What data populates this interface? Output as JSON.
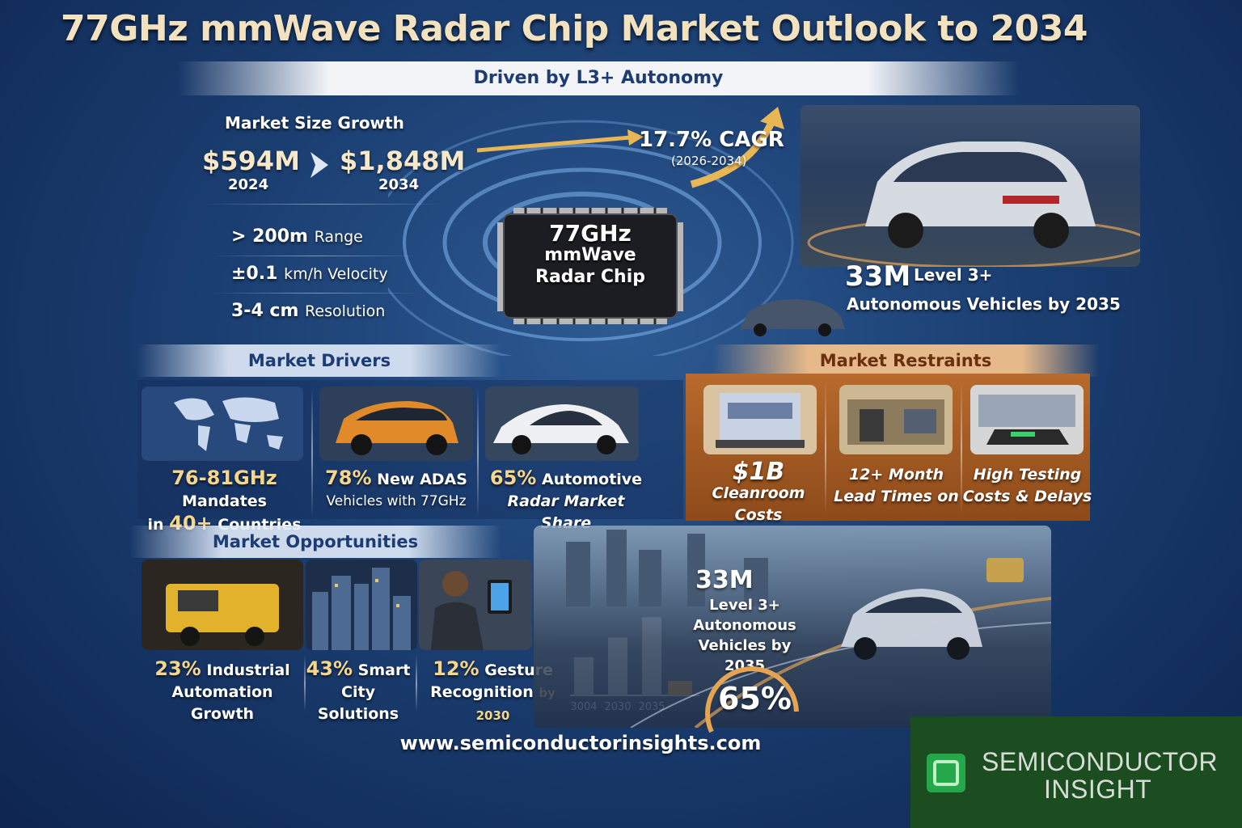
{
  "title": "77GHz mmWave Radar Chip Market Outlook to 2034",
  "subtitle": "Driven by L3+ Autonomy",
  "market_size": {
    "heading": "Market Size Growth",
    "start_value": "$594M",
    "start_year": "2024",
    "end_value": "$1,848M",
    "end_year": "2034",
    "cagr": "17.7% CAGR",
    "cagr_period": "(2026-2034)"
  },
  "specs": [
    {
      "value": "> 200m",
      "label": "Range"
    },
    {
      "value": "±0.1",
      "label": "km/h Velocity"
    },
    {
      "value": "3-4 cm",
      "label": "Resolution"
    }
  ],
  "chip_label": [
    "77GHz",
    "mmWave",
    "Radar Chip"
  ],
  "autonomy_stat": {
    "value": "33M",
    "line1": "Level 3+",
    "line2": "Autonomous Vehicles by 2035"
  },
  "drivers": {
    "heading": "Market Drivers",
    "items": [
      {
        "num": "76-81GHz",
        "line1": "Mandates",
        "num2": "40+",
        "line2pre": "in",
        "line2": "Countries"
      },
      {
        "num": "78%",
        "line1": "New ADAS",
        "line2": "Vehicles with 77GHz"
      },
      {
        "num": "65%",
        "line1": "Automotive",
        "line2": "Radar Market Share"
      }
    ]
  },
  "restraints": {
    "heading": "Market Restraints",
    "items": [
      {
        "num": "$1B",
        "line2": "Cleanroom Costs"
      },
      {
        "line1": "12+ Month",
        "line2": "Lead Times on"
      },
      {
        "line1": "High Testing",
        "line2": "Costs & Delays"
      }
    ]
  },
  "opportunities": {
    "heading": "Market Opportunities",
    "items": [
      {
        "num": "23%",
        "line1": "Industrial",
        "line2": "Automation Growth"
      },
      {
        "num": "43%",
        "line1": "Smart",
        "line2": "City Solutions"
      },
      {
        "num": "12%",
        "line1": "Gesture",
        "line2": "Recognition",
        "suffix": "by 2030"
      }
    ]
  },
  "mini_chart": {
    "categories": [
      "3004",
      "2030",
      "2035"
    ],
    "values": [
      0.45,
      0.68,
      0.92
    ],
    "highlight_value": 0.17
  },
  "bottom_stat": {
    "value": "33M",
    "line1": "Level 3+",
    "line2": "Autonomous",
    "line3": "Vehicles by 2035"
  },
  "gauge_value": "65%",
  "url": "www.semiconductorinsights.com",
  "logo": {
    "line1": "SEMICONDUCTOR",
    "line2": "INSIGHT"
  }
}
